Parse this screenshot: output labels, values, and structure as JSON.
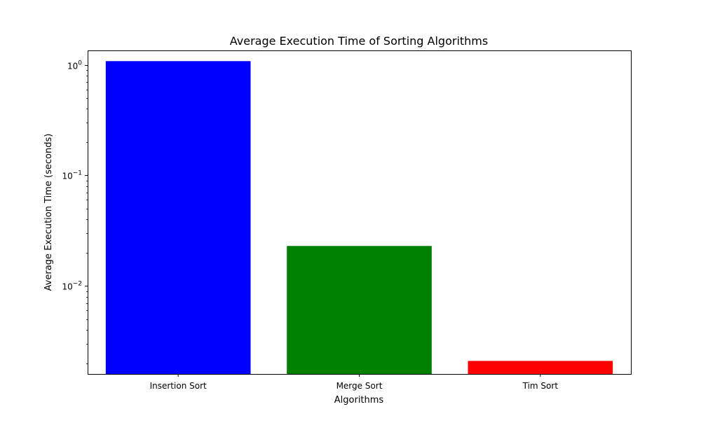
{
  "chart_data": {
    "type": "bar",
    "title": "Average Execution Time of Sorting Algorithms",
    "xlabel": "Algorithms",
    "ylabel": "Average Execution Time (seconds)",
    "yscale": "log",
    "ylim": [
      0.0016,
      1.35
    ],
    "y_major_ticks": [
      {
        "value": 1,
        "base": "10",
        "exp": "0"
      },
      {
        "value": 0.1,
        "base": "10",
        "exp": "−1"
      },
      {
        "value": 0.01,
        "base": "10",
        "exp": "−2"
      }
    ],
    "y_minor_ticks": [
      0.002,
      0.003,
      0.004,
      0.005,
      0.006,
      0.007,
      0.008,
      0.009,
      0.02,
      0.03,
      0.04,
      0.05,
      0.06,
      0.07,
      0.08,
      0.09,
      0.2,
      0.3,
      0.4,
      0.5,
      0.6,
      0.7,
      0.8,
      0.9
    ],
    "grid": false,
    "legend": "none",
    "categories": [
      "Insertion Sort",
      "Merge Sort",
      "Tim Sort"
    ],
    "values": [
      1.08,
      0.023,
      0.0021
    ],
    "colors": [
      "#0000ff",
      "#008000",
      "#ff0000"
    ]
  }
}
